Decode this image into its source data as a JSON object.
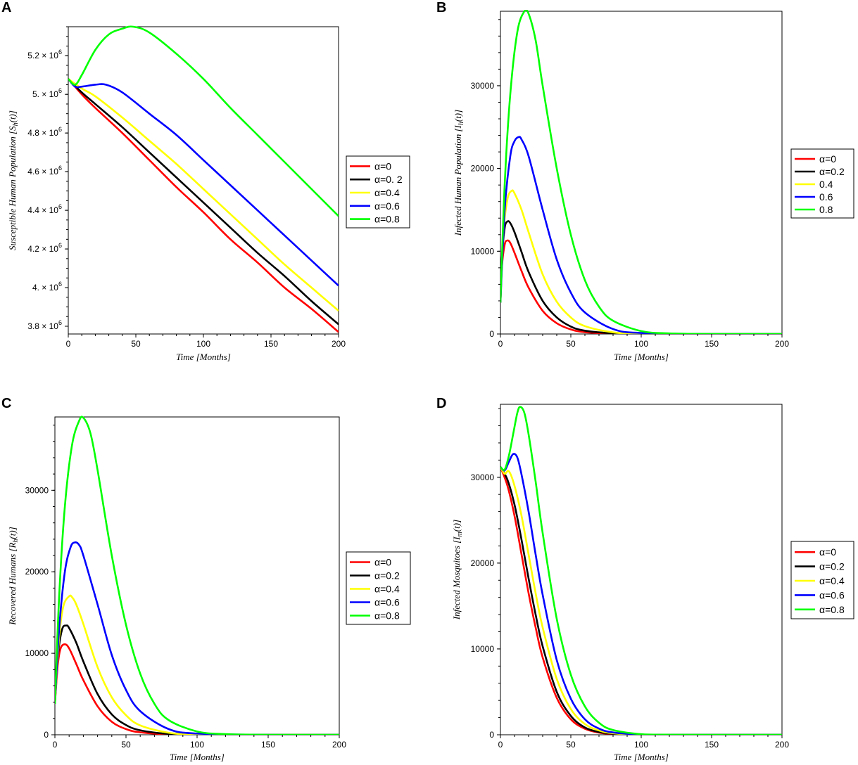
{
  "chart_data": [
    {
      "panel": "A",
      "type": "line",
      "xlabel": "Time",
      "xunit": "Months",
      "ylabel": "Susceptible Human Population",
      "ysymbol": "S",
      "ysub": "h",
      "xlim": [
        0,
        200
      ],
      "ylim": [
        3760000,
        5350000
      ],
      "xticks": [
        0,
        50,
        100,
        150,
        200
      ],
      "yticks": [
        3800000,
        4000000,
        4200000,
        4400000,
        4600000,
        4800000,
        5000000,
        5200000
      ],
      "ytick_labels": [
        "3.8 × 10",
        "4. × 10",
        "4.2 × 10",
        "4.4 × 10",
        "4.6 × 10",
        "4.8 × 10",
        "5. × 10",
        "5.2 × 10"
      ],
      "ytick_exp": "6",
      "series": [
        {
          "name": "α=0",
          "color": "#ff0000",
          "x": [
            0,
            10,
            20,
            40,
            60,
            80,
            100,
            120,
            140,
            160,
            180,
            200
          ],
          "values": [
            5080000,
            5000000,
            4930000,
            4800000,
            4660000,
            4520000,
            4390000,
            4250000,
            4130000,
            4000000,
            3890000,
            3770000
          ]
        },
        {
          "name": "α=0. 2",
          "color": "#000000",
          "x": [
            0,
            10,
            20,
            40,
            60,
            80,
            100,
            120,
            140,
            160,
            180,
            200
          ],
          "values": [
            5080000,
            5010000,
            4950000,
            4830000,
            4700000,
            4570000,
            4440000,
            4310000,
            4180000,
            4060000,
            3930000,
            3810000
          ]
        },
        {
          "name": "α=0.4",
          "color": "#ffff00",
          "x": [
            0,
            10,
            20,
            40,
            60,
            80,
            100,
            120,
            140,
            160,
            180,
            200
          ],
          "values": [
            5080000,
            5030000,
            4990000,
            4880000,
            4760000,
            4640000,
            4510000,
            4380000,
            4250000,
            4120000,
            4000000,
            3880000
          ]
        },
        {
          "name": "α=0.6",
          "color": "#0000ff",
          "x": [
            0,
            5,
            10,
            20,
            28,
            40,
            60,
            80,
            100,
            120,
            140,
            160,
            180,
            200
          ],
          "values": [
            5080000,
            5040000,
            5040000,
            5050000,
            5050000,
            5010000,
            4900000,
            4790000,
            4660000,
            4530000,
            4400000,
            4270000,
            4140000,
            4010000
          ]
        },
        {
          "name": "α=0.8",
          "color": "#00ff00",
          "x": [
            0,
            5,
            10,
            20,
            30,
            40,
            48,
            60,
            80,
            100,
            120,
            140,
            160,
            180,
            200
          ],
          "values": [
            5080000,
            5050000,
            5100000,
            5230000,
            5310000,
            5340000,
            5350000,
            5320000,
            5210000,
            5080000,
            4930000,
            4790000,
            4650000,
            4510000,
            4370000
          ]
        }
      ]
    },
    {
      "panel": "B",
      "type": "line",
      "xlabel": "Time",
      "xunit": "Months",
      "ylabel": "Infected Human Population",
      "ysymbol": "I",
      "ysub": "h",
      "xlim": [
        0,
        200
      ],
      "ylim": [
        0,
        39000
      ],
      "xticks": [
        0,
        50,
        100,
        150,
        200
      ],
      "yticks": [
        0,
        10000,
        20000,
        30000
      ],
      "series": [
        {
          "name": "α=0",
          "color": "#ff0000",
          "x": [
            0,
            1,
            3,
            5,
            7,
            10,
            15,
            20,
            30,
            40,
            50,
            60,
            80,
            100,
            150,
            200
          ],
          "values": [
            3800,
            8000,
            10800,
            11300,
            11000,
            9800,
            7600,
            5600,
            2800,
            1300,
            550,
            220,
            40,
            8,
            0,
            0
          ]
        },
        {
          "name": "α=0.2",
          "color": "#000000",
          "x": [
            0,
            1,
            3,
            5,
            7,
            10,
            15,
            20,
            30,
            40,
            50,
            60,
            80,
            100,
            150,
            200
          ],
          "values": [
            3800,
            9000,
            12800,
            13600,
            13400,
            12300,
            9900,
            7500,
            4000,
            2000,
            900,
            400,
            80,
            15,
            0,
            0
          ]
        },
        {
          "name": "0.4",
          "color": "#ffff00",
          "x": [
            0,
            2,
            5,
            8,
            10,
            15,
            20,
            30,
            40,
            50,
            60,
            80,
            100,
            150,
            200
          ],
          "values": [
            3800,
            12000,
            16300,
            17300,
            17000,
            15000,
            12300,
            7200,
            3900,
            2000,
            950,
            200,
            40,
            0,
            0
          ]
        },
        {
          "name": "0.6",
          "color": "#0000ff",
          "x": [
            0,
            3,
            7,
            10,
            13,
            15,
            20,
            30,
            40,
            50,
            60,
            80,
            100,
            150,
            200
          ],
          "values": [
            3800,
            15000,
            21500,
            23300,
            23800,
            23500,
            21500,
            15000,
            9000,
            5000,
            2600,
            600,
            120,
            0,
            0
          ]
        },
        {
          "name": "0.8",
          "color": "#00ff00",
          "x": [
            0,
            3,
            7,
            12,
            17,
            20,
            25,
            30,
            40,
            50,
            60,
            70,
            80,
            100,
            120,
            150,
            200
          ],
          "values": [
            3800,
            18000,
            29000,
            36500,
            39000,
            38700,
            35500,
            30000,
            20000,
            12000,
            6500,
            3300,
            1600,
            350,
            70,
            0,
            0
          ]
        }
      ]
    },
    {
      "panel": "C",
      "type": "line",
      "xlabel": "Time",
      "xunit": "Months",
      "ylabel": "Recovered Humans",
      "ysymbol": "R",
      "ysub": "h",
      "xlim": [
        0,
        200
      ],
      "ylim": [
        0,
        39000
      ],
      "xticks": [
        0,
        50,
        100,
        150,
        200
      ],
      "yticks": [
        0,
        10000,
        20000,
        30000
      ],
      "series": [
        {
          "name": "α=0",
          "color": "#ff0000",
          "x": [
            0,
            2,
            4,
            7,
            10,
            15,
            20,
            30,
            40,
            50,
            60,
            80,
            100,
            150,
            200
          ],
          "values": [
            3800,
            8500,
            10600,
            11100,
            10600,
            8700,
            6700,
            3500,
            1600,
            700,
            300,
            50,
            10,
            0,
            0
          ]
        },
        {
          "name": "α=0.2",
          "color": "#000000",
          "x": [
            0,
            2,
            5,
            8,
            10,
            15,
            20,
            30,
            40,
            50,
            60,
            80,
            100,
            150,
            200
          ],
          "values": [
            3800,
            9500,
            12900,
            13400,
            13100,
            11300,
            9000,
            5000,
            2500,
            1200,
            550,
            100,
            20,
            0,
            0
          ]
        },
        {
          "name": "α=0.4",
          "color": "#ffff00",
          "x": [
            0,
            3,
            6,
            10,
            12,
            15,
            20,
            30,
            40,
            50,
            60,
            80,
            100,
            150,
            200
          ],
          "values": [
            3800,
            12000,
            15800,
            17000,
            16900,
            16000,
            13600,
            8300,
            4600,
            2400,
            1150,
            250,
            50,
            0,
            0
          ]
        },
        {
          "name": "α=0.6",
          "color": "#0000ff",
          "x": [
            0,
            3,
            7,
            11,
            14,
            17,
            20,
            30,
            40,
            50,
            60,
            80,
            100,
            150,
            200
          ],
          "values": [
            3800,
            13000,
            20000,
            23000,
            23600,
            23300,
            22000,
            16000,
            9800,
            5500,
            2900,
            700,
            150,
            0,
            0
          ]
        },
        {
          "name": "α=0.8",
          "color": "#00ff00",
          "x": [
            0,
            3,
            7,
            12,
            17,
            20,
            25,
            30,
            40,
            50,
            60,
            70,
            80,
            100,
            120,
            150,
            200
          ],
          "values": [
            3800,
            17000,
            28000,
            35500,
            38500,
            38900,
            37000,
            32500,
            22000,
            13500,
            7500,
            3800,
            1800,
            400,
            80,
            0,
            0
          ]
        }
      ]
    },
    {
      "panel": "D",
      "type": "line",
      "xlabel": "Time",
      "xunit": "Months",
      "ylabel": "Infected Mosquitoes",
      "ysymbol": "I",
      "ysub": "m",
      "xlim": [
        0,
        200
      ],
      "ylim": [
        0,
        38500
      ],
      "xticks": [
        0,
        50,
        100,
        150,
        200
      ],
      "yticks": [
        0,
        10000,
        20000,
        30000
      ],
      "series": [
        {
          "name": "α=0",
          "color": "#ff0000",
          "x": [
            0,
            5,
            10,
            15,
            20,
            25,
            30,
            40,
            50,
            60,
            70,
            80,
            90,
            100,
            120,
            150,
            200
          ],
          "values": [
            31200,
            29000,
            25500,
            21000,
            16500,
            12500,
            9000,
            4300,
            1800,
            700,
            250,
            90,
            30,
            10,
            0,
            0,
            0
          ]
        },
        {
          "name": "α=0.2",
          "color": "#000000",
          "x": [
            0,
            5,
            10,
            15,
            20,
            25,
            30,
            40,
            50,
            60,
            70,
            80,
            90,
            100,
            120,
            150,
            200
          ],
          "values": [
            31200,
            29700,
            26800,
            22700,
            18200,
            14000,
            10300,
            5000,
            2200,
            850,
            320,
            120,
            40,
            15,
            0,
            0,
            0
          ]
        },
        {
          "name": "α=0.4",
          "color": "#ffff00",
          "x": [
            0,
            3,
            6,
            10,
            15,
            20,
            25,
            30,
            40,
            50,
            60,
            70,
            80,
            100,
            120,
            150,
            200
          ],
          "values": [
            31200,
            30400,
            30700,
            29000,
            25500,
            21000,
            16500,
            12500,
            6500,
            3000,
            1250,
            500,
            180,
            20,
            0,
            0,
            0
          ]
        },
        {
          "name": "α=0.6",
          "color": "#0000ff",
          "x": [
            0,
            3,
            6,
            9,
            12,
            15,
            20,
            25,
            30,
            40,
            50,
            60,
            70,
            80,
            100,
            120,
            150,
            200
          ],
          "values": [
            31200,
            30800,
            31800,
            32700,
            32300,
            30300,
            26000,
            21000,
            16300,
            8700,
            4200,
            1800,
            720,
            270,
            30,
            0,
            0,
            0
          ]
        },
        {
          "name": "α=0.8",
          "color": "#00ff00",
          "x": [
            0,
            3,
            6,
            9,
            12,
            14,
            17,
            20,
            25,
            30,
            40,
            50,
            60,
            70,
            80,
            100,
            120,
            150,
            200
          ],
          "values": [
            31200,
            30900,
            32500,
            35000,
            37500,
            38200,
            37500,
            35000,
            29500,
            23500,
            13500,
            7000,
            3300,
            1400,
            550,
            70,
            10,
            0,
            0
          ]
        }
      ]
    }
  ]
}
